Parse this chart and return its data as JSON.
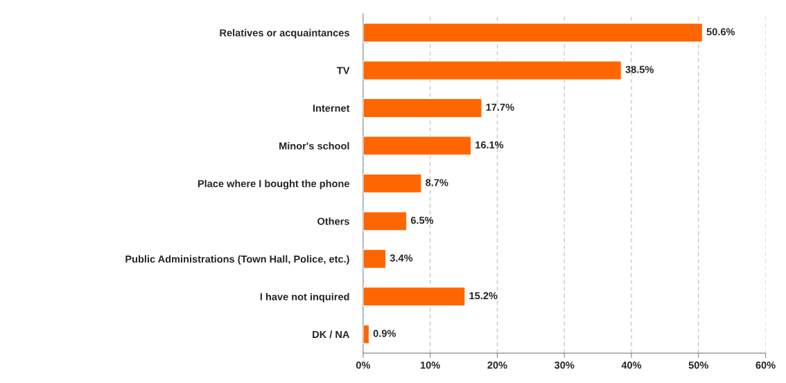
{
  "chart_data": {
    "type": "bar",
    "orientation": "horizontal",
    "categories": [
      "Relatives or acquaintances",
      "TV",
      "Internet",
      "Minor's school",
      "Place where I bought the phone",
      "Others",
      "Public Administrations (Town Hall, Police, etc.)",
      "I have not inquired",
      "DK / NA"
    ],
    "values": [
      50.6,
      38.5,
      17.7,
      16.1,
      8.7,
      6.5,
      3.4,
      15.2,
      0.9
    ],
    "value_labels": [
      "50.6%",
      "38.5%",
      "17.7%",
      "16.1%",
      "8.7%",
      "6.5%",
      "3.4%",
      "15.2%",
      "0.9%"
    ],
    "color": "#ff6600",
    "xlim": [
      0,
      60
    ],
    "xticks": [
      {
        "value": 0,
        "label": "0%"
      },
      {
        "value": 10,
        "label": "10%"
      },
      {
        "value": 20,
        "label": "20%"
      },
      {
        "value": 30,
        "label": "30%"
      },
      {
        "value": 40,
        "label": "40%"
      },
      {
        "value": 50,
        "label": "50%"
      },
      {
        "value": 60,
        "label": "60%"
      }
    ],
    "grid": "x"
  }
}
